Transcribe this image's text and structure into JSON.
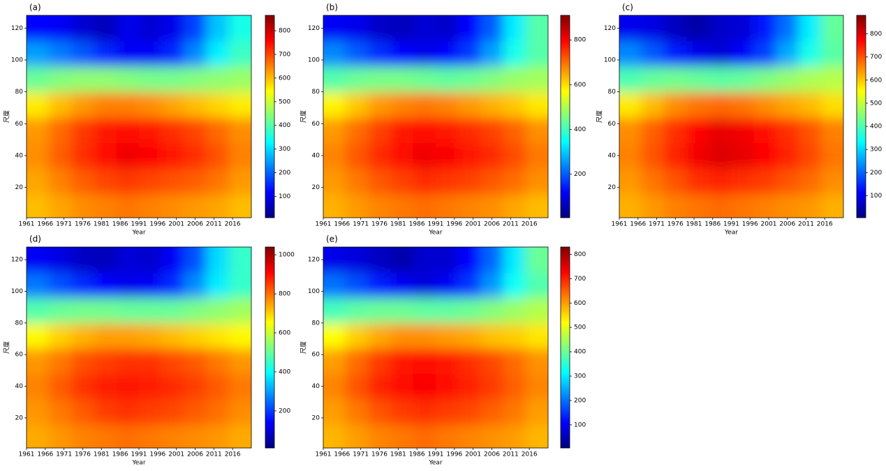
{
  "chart_data": [
    {
      "type": "heatmap",
      "title": "(a)",
      "xlabel": "Year",
      "ylabel": "尺度",
      "colormap": "jet",
      "x": [
        1964,
        1970,
        1976,
        1982,
        1988,
        1994,
        2000,
        2006,
        2012,
        2018
      ],
      "y": [
        8,
        24,
        40,
        56,
        72,
        88,
        104,
        120
      ],
      "values": [
        [
          600,
          620,
          640,
          650,
          660,
          650,
          640,
          630,
          620,
          600
        ],
        [
          620,
          650,
          680,
          700,
          710,
          700,
          690,
          680,
          660,
          630
        ],
        [
          640,
          680,
          720,
          750,
          770,
          760,
          740,
          720,
          690,
          650
        ],
        [
          630,
          670,
          710,
          740,
          750,
          740,
          720,
          700,
          670,
          640
        ],
        [
          560,
          600,
          630,
          650,
          650,
          640,
          620,
          600,
          580,
          560
        ],
        [
          420,
          440,
          450,
          450,
          440,
          430,
          430,
          440,
          450,
          460
        ],
        [
          250,
          220,
          190,
          150,
          110,
          110,
          150,
          230,
          320,
          380
        ],
        [
          120,
          110,
          80,
          60,
          100,
          80,
          100,
          170,
          280,
          350
        ]
      ],
      "xlim": [
        1961,
        2021
      ],
      "xticks": [
        1961,
        1966,
        1971,
        1976,
        1981,
        1986,
        1991,
        1996,
        2001,
        2006,
        2011,
        2016
      ],
      "ylim": [
        1,
        128
      ],
      "yticks": [
        20,
        40,
        60,
        80,
        100,
        120
      ],
      "clim": [
        10,
        865
      ],
      "cticks": [
        100,
        200,
        300,
        400,
        500,
        600,
        700,
        800
      ]
    },
    {
      "type": "heatmap",
      "title": "(b)",
      "xlabel": "Year",
      "ylabel": "尺度",
      "colormap": "jet",
      "x": [
        1964,
        1970,
        1976,
        1982,
        1988,
        1994,
        2000,
        2006,
        2012,
        2018
      ],
      "y": [
        8,
        24,
        40,
        56,
        72,
        88,
        104,
        120
      ],
      "values": [
        [
          640,
          660,
          680,
          690,
          700,
          690,
          680,
          670,
          650,
          630
        ],
        [
          660,
          690,
          720,
          740,
          760,
          750,
          740,
          720,
          700,
          670
        ],
        [
          680,
          720,
          760,
          790,
          810,
          800,
          780,
          760,
          730,
          690
        ],
        [
          660,
          700,
          740,
          780,
          790,
          780,
          760,
          740,
          710,
          670
        ],
        [
          580,
          620,
          660,
          680,
          690,
          680,
          660,
          640,
          620,
          590
        ],
        [
          420,
          440,
          450,
          450,
          440,
          430,
          440,
          460,
          480,
          490
        ],
        [
          240,
          200,
          160,
          120,
          100,
          120,
          170,
          260,
          360,
          420
        ],
        [
          110,
          100,
          70,
          60,
          80,
          70,
          120,
          200,
          330,
          420
        ]
      ],
      "xlim": [
        1961,
        2021
      ],
      "xticks": [
        1961,
        1966,
        1971,
        1976,
        1981,
        1986,
        1991,
        1996,
        2001,
        2006,
        2011,
        2016
      ],
      "ylim": [
        1,
        128
      ],
      "yticks": [
        20,
        40,
        60,
        80,
        100,
        120
      ],
      "clim": [
        5,
        910
      ],
      "cticks": [
        200,
        400,
        600,
        800
      ]
    },
    {
      "type": "heatmap",
      "title": "(c)",
      "xlabel": "Year",
      "ylabel": "尺度",
      "colormap": "jet",
      "x": [
        1964,
        1970,
        1976,
        1982,
        1988,
        1994,
        2000,
        2006,
        2012,
        2018
      ],
      "y": [
        8,
        24,
        40,
        56,
        72,
        88,
        104,
        120
      ],
      "values": [
        [
          620,
          640,
          660,
          670,
          680,
          670,
          660,
          650,
          640,
          620
        ],
        [
          640,
          670,
          700,
          730,
          740,
          730,
          720,
          700,
          680,
          650
        ],
        [
          660,
          700,
          740,
          780,
          800,
          790,
          770,
          740,
          710,
          670
        ],
        [
          650,
          690,
          730,
          770,
          790,
          780,
          760,
          730,
          700,
          660
        ],
        [
          570,
          610,
          650,
          670,
          680,
          670,
          650,
          630,
          610,
          580
        ],
        [
          400,
          420,
          430,
          420,
          410,
          420,
          440,
          460,
          480,
          490
        ],
        [
          230,
          190,
          140,
          100,
          80,
          110,
          170,
          260,
          350,
          410
        ],
        [
          100,
          90,
          60,
          40,
          70,
          80,
          130,
          210,
          320,
          420
        ]
      ],
      "xlim": [
        1961,
        2021
      ],
      "xticks": [
        1961,
        1966,
        1971,
        1976,
        1981,
        1986,
        1991,
        1996,
        2001,
        2006,
        2011,
        2016
      ],
      "ylim": [
        1,
        128
      ],
      "yticks": [
        20,
        40,
        60,
        80,
        100,
        120
      ],
      "clim": [
        5,
        880
      ],
      "cticks": [
        100,
        200,
        300,
        400,
        500,
        600,
        700,
        800
      ]
    },
    {
      "type": "heatmap",
      "title": "(d)",
      "xlabel": "Year",
      "ylabel": "尺度",
      "colormap": "jet",
      "x": [
        1964,
        1970,
        1976,
        1982,
        1988,
        1994,
        2000,
        2006,
        2012,
        2018
      ],
      "y": [
        8,
        24,
        40,
        56,
        72,
        88,
        104,
        120
      ],
      "values": [
        [
          740,
          760,
          780,
          790,
          800,
          790,
          780,
          770,
          760,
          740
        ],
        [
          760,
          790,
          820,
          850,
          860,
          850,
          840,
          820,
          800,
          770
        ],
        [
          780,
          820,
          860,
          880,
          890,
          880,
          870,
          850,
          820,
          790
        ],
        [
          760,
          790,
          830,
          850,
          860,
          860,
          840,
          820,
          790,
          760
        ],
        [
          660,
          700,
          730,
          750,
          750,
          740,
          720,
          700,
          680,
          660
        ],
        [
          480,
          500,
          510,
          510,
          500,
          500,
          500,
          520,
          540,
          560
        ],
        [
          260,
          220,
          180,
          140,
          120,
          130,
          180,
          280,
          380,
          450
        ],
        [
          130,
          110,
          80,
          70,
          100,
          90,
          130,
          220,
          360,
          450
        ]
      ],
      "xlim": [
        1961,
        2021
      ],
      "xticks": [
        1961,
        1966,
        1971,
        1976,
        1981,
        1986,
        1991,
        1996,
        2001,
        2006,
        2011,
        2016
      ],
      "ylim": [
        1,
        128
      ],
      "yticks": [
        20,
        40,
        60,
        80,
        100,
        120
      ],
      "clim": [
        10,
        1040
      ],
      "cticks": [
        200,
        400,
        600,
        800,
        1000
      ]
    },
    {
      "type": "heatmap",
      "title": "(e)",
      "xlabel": "Year",
      "ylabel": "尺度",
      "colormap": "jet",
      "x": [
        1964,
        1970,
        1976,
        1982,
        1988,
        1994,
        2000,
        2006,
        2012,
        2018
      ],
      "y": [
        8,
        24,
        40,
        56,
        72,
        88,
        104,
        120
      ],
      "values": [
        [
          580,
          600,
          620,
          630,
          640,
          630,
          620,
          610,
          600,
          580
        ],
        [
          600,
          630,
          660,
          680,
          690,
          680,
          670,
          650,
          630,
          600
        ],
        [
          620,
          660,
          700,
          720,
          730,
          720,
          700,
          680,
          650,
          620
        ],
        [
          600,
          640,
          680,
          710,
          720,
          710,
          690,
          670,
          640,
          610
        ],
        [
          520,
          560,
          590,
          610,
          610,
          600,
          590,
          570,
          560,
          540
        ],
        [
          370,
          390,
          400,
          400,
          390,
          390,
          400,
          420,
          440,
          460
        ],
        [
          200,
          170,
          130,
          100,
          80,
          100,
          150,
          230,
          320,
          380
        ],
        [
          90,
          80,
          60,
          40,
          70,
          70,
          110,
          190,
          300,
          400
        ]
      ],
      "xlim": [
        1961,
        2021
      ],
      "xticks": [
        1961,
        1966,
        1971,
        1976,
        1981,
        1986,
        1991,
        1996,
        2001,
        2006,
        2011,
        2016
      ],
      "ylim": [
        1,
        128
      ],
      "yticks": [
        20,
        40,
        60,
        80,
        100,
        120
      ],
      "clim": [
        5,
        830
      ],
      "cticks": [
        100,
        200,
        300,
        400,
        500,
        600,
        700,
        800
      ]
    }
  ]
}
